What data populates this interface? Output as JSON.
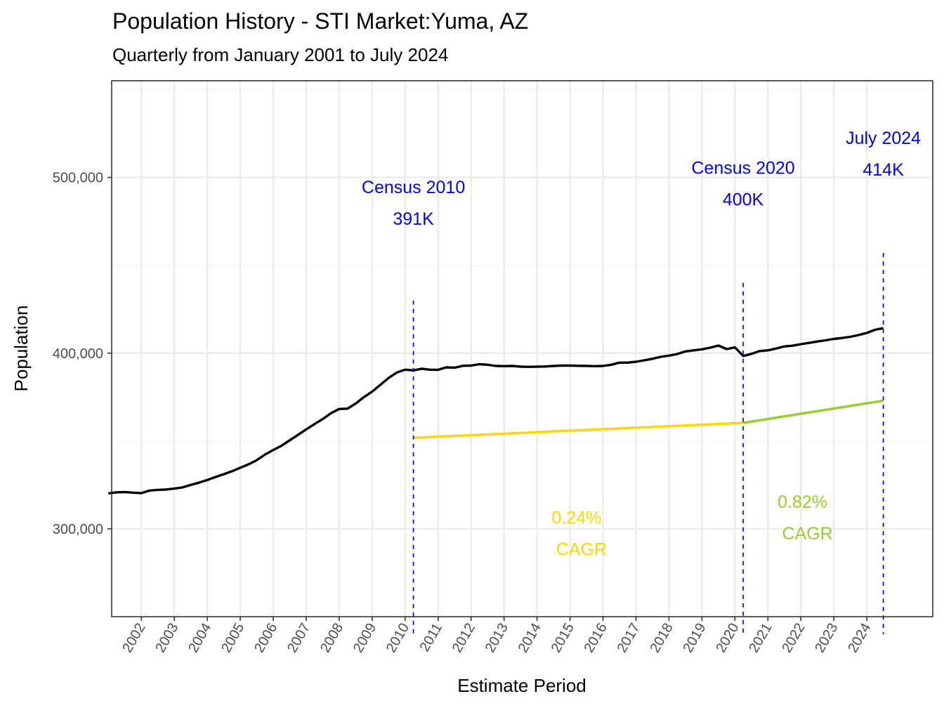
{
  "chart_data": {
    "type": "line",
    "title": "Population History - STI Market:Yuma, AZ",
    "subtitle": "Quarterly from January 2001 to July 2024",
    "xlabel": "Estimate Period",
    "ylabel": "Population",
    "xlim": [
      2001.1,
      2026.0
    ],
    "ylim": [
      250000,
      555000
    ],
    "y_ticks": [
      300000,
      400000,
      500000
    ],
    "y_tick_labels": [
      "300,000",
      "400,000",
      "500,000"
    ],
    "x_ticks": [
      2002,
      2003,
      2004,
      2005,
      2006,
      2007,
      2008,
      2009,
      2010,
      2011,
      2012,
      2013,
      2014,
      2015,
      2016,
      2017,
      2018,
      2019,
      2020,
      2021,
      2022,
      2023,
      2024
    ],
    "x_tick_labels": [
      "2002",
      "2003",
      "2004",
      "2005",
      "2006",
      "2007",
      "2008",
      "2009",
      "2010",
      "2011",
      "2012",
      "2013",
      "2014",
      "2015",
      "2016",
      "2017",
      "2018",
      "2019",
      "2020",
      "2021",
      "2022",
      "2023",
      "2024"
    ],
    "series": [
      {
        "name": "Population",
        "color": "#000000",
        "x": [
          2001.0,
          2001.25,
          2001.5,
          2001.75,
          2002.0,
          2002.25,
          2002.5,
          2002.75,
          2003.0,
          2003.25,
          2003.5,
          2003.75,
          2004.0,
          2004.25,
          2004.5,
          2004.75,
          2005.0,
          2005.25,
          2005.5,
          2005.75,
          2006.0,
          2006.25,
          2006.5,
          2006.75,
          2007.0,
          2007.25,
          2007.5,
          2007.75,
          2008.0,
          2008.25,
          2008.5,
          2008.75,
          2009.0,
          2009.25,
          2009.5,
          2009.75,
          2010.0,
          2010.25,
          2010.5,
          2010.75,
          2011.0,
          2011.25,
          2011.5,
          2011.75,
          2012.0,
          2012.25,
          2012.5,
          2012.75,
          2013.0,
          2013.25,
          2013.5,
          2013.75,
          2014.0,
          2014.25,
          2014.5,
          2014.75,
          2015.0,
          2015.25,
          2015.5,
          2015.75,
          2016.0,
          2016.25,
          2016.5,
          2016.75,
          2017.0,
          2017.25,
          2017.5,
          2017.75,
          2018.0,
          2018.25,
          2018.5,
          2018.75,
          2019.0,
          2019.25,
          2019.5,
          2019.75,
          2020.0,
          2020.25,
          2020.5,
          2020.75,
          2021.0,
          2021.25,
          2021.5,
          2021.75,
          2022.0,
          2022.25,
          2022.5,
          2022.75,
          2023.0,
          2023.25,
          2023.5,
          2023.75,
          2024.0,
          2024.25,
          2024.5
        ],
        "values": [
          320200,
          320800,
          320900,
          320600,
          320300,
          321800,
          322200,
          322400,
          322900,
          323600,
          325000,
          326300,
          327800,
          329500,
          331100,
          332800,
          334800,
          336700,
          339100,
          342300,
          344800,
          347300,
          350400,
          353500,
          356600,
          359600,
          362500,
          365800,
          368200,
          368400,
          371300,
          375000,
          378100,
          382000,
          385900,
          389000,
          390600,
          390200,
          391100,
          390600,
          390500,
          391900,
          391700,
          392800,
          392900,
          393700,
          393400,
          392700,
          392600,
          392700,
          392300,
          392200,
          392300,
          392400,
          392700,
          392900,
          392900,
          392800,
          392700,
          392600,
          392700,
          393400,
          394600,
          394600,
          395100,
          395900,
          396800,
          397900,
          398600,
          399500,
          401000,
          401600,
          402200,
          403100,
          404300,
          402300,
          403300,
          398400,
          399600,
          401200,
          401600,
          402600,
          403800,
          404200,
          405100,
          405800,
          406600,
          407300,
          408100,
          408600,
          409300,
          410300,
          411500,
          413300,
          414200
        ]
      },
      {
        "name": "0.24% CAGR trend",
        "color": "#FFD700",
        "x": [
          2010.25,
          2020.25
        ],
        "values": [
          351800,
          360300
        ]
      },
      {
        "name": "0.82% CAGR trend",
        "color": "#9ACD32",
        "x": [
          2020.25,
          2024.5
        ],
        "values": [
          360300,
          372900
        ]
      }
    ],
    "reference_lines": [
      {
        "x": 2010.25,
        "color": "#0000FF",
        "ymin": 240000,
        "ymax": 430000
      },
      {
        "x": 2020.25,
        "color": "#0000FF",
        "ymin": 240000,
        "ymax": 440000
      },
      {
        "x": 2024.5,
        "color": "#0000FF",
        "ymin": 240000,
        "ymax": 457000
      }
    ],
    "annotations": [
      {
        "text": "Census 2010",
        "x": 2010.25,
        "y": 491000,
        "color": "#0000FF",
        "kind": "census"
      },
      {
        "text": "391K",
        "x": 2010.25,
        "y": 473000,
        "color": "#0000FF",
        "kind": "census"
      },
      {
        "text": "Census 2020",
        "x": 2020.25,
        "y": 502000,
        "color": "#0000FF",
        "kind": "census"
      },
      {
        "text": "400K",
        "x": 2020.25,
        "y": 484000,
        "color": "#0000FF",
        "kind": "census"
      },
      {
        "text": "July 2024",
        "x": 2024.5,
        "y": 519000,
        "color": "#0000FF",
        "kind": "census"
      },
      {
        "text": "414K",
        "x": 2024.5,
        "y": 501000,
        "color": "#0000FF",
        "kind": "census"
      },
      {
        "text": "0.24%",
        "x": 2015.2,
        "y": 303000,
        "color": "#FFD700",
        "kind": "cagr"
      },
      {
        "text": "CAGR",
        "x": 2015.35,
        "y": 285000,
        "color": "#FFD700",
        "kind": "cagr"
      },
      {
        "text": "0.82%",
        "x": 2022.05,
        "y": 312000,
        "color": "#9ACD32",
        "kind": "cagr"
      },
      {
        "text": "CAGR",
        "x": 2022.2,
        "y": 294000,
        "color": "#9ACD32",
        "kind": "cagr"
      }
    ],
    "grid": true
  }
}
